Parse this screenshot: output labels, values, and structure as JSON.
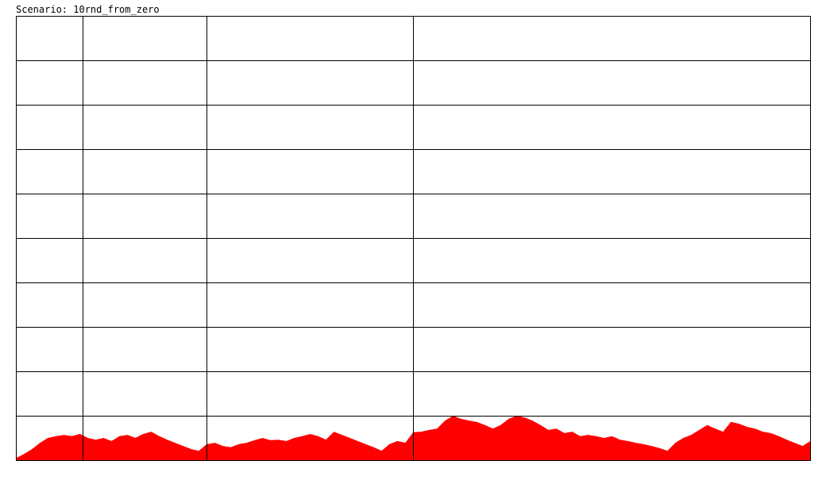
{
  "chart_data": {
    "type": "area",
    "title": "Scenario: 10rnd_from_zero",
    "color": "#ff0000",
    "xlim": [
      0,
      1000
    ],
    "xticks": [
      0,
      84,
      240,
      500,
      1000
    ],
    "ylim": [
      0,
      10
    ],
    "yticks": [
      0,
      1,
      2,
      3,
      4,
      5,
      6,
      7,
      8,
      9,
      10
    ],
    "grid": true,
    "x": [
      0,
      10,
      20,
      30,
      40,
      50,
      60,
      70,
      80,
      90,
      100,
      110,
      120,
      130,
      140,
      150,
      160,
      170,
      180,
      190,
      200,
      210,
      220,
      230,
      240,
      250,
      260,
      270,
      280,
      290,
      300,
      310,
      320,
      330,
      340,
      350,
      360,
      370,
      380,
      390,
      400,
      410,
      420,
      430,
      440,
      450,
      460,
      470,
      480,
      490,
      500,
      510,
      520,
      530,
      540,
      550,
      560,
      570,
      580,
      590,
      600,
      610,
      620,
      630,
      640,
      650,
      660,
      670,
      680,
      690,
      700,
      710,
      720,
      730,
      740,
      750,
      760,
      770,
      780,
      790,
      800,
      810,
      820,
      830,
      840,
      850,
      860,
      870,
      880,
      890,
      900,
      910,
      920,
      930,
      940,
      950,
      960,
      970,
      980,
      990,
      1000
    ],
    "values": [
      0.05,
      0.14,
      0.25,
      0.39,
      0.5,
      0.54,
      0.57,
      0.54,
      0.59,
      0.5,
      0.46,
      0.5,
      0.43,
      0.54,
      0.57,
      0.5,
      0.59,
      0.64,
      0.54,
      0.46,
      0.39,
      0.32,
      0.25,
      0.21,
      0.36,
      0.39,
      0.32,
      0.29,
      0.36,
      0.39,
      0.45,
      0.5,
      0.45,
      0.46,
      0.43,
      0.5,
      0.54,
      0.59,
      0.54,
      0.46,
      0.64,
      0.57,
      0.5,
      0.43,
      0.36,
      0.29,
      0.21,
      0.36,
      0.43,
      0.39,
      0.63,
      0.64,
      0.68,
      0.71,
      0.89,
      1.0,
      0.93,
      0.89,
      0.86,
      0.79,
      0.71,
      0.79,
      0.93,
      1.0,
      0.96,
      0.89,
      0.79,
      0.68,
      0.71,
      0.61,
      0.64,
      0.54,
      0.57,
      0.54,
      0.5,
      0.54,
      0.46,
      0.43,
      0.39,
      0.36,
      0.32,
      0.27,
      0.21,
      0.39,
      0.5,
      0.57,
      0.68,
      0.79,
      0.71,
      0.64,
      0.86,
      0.82,
      0.75,
      0.71,
      0.64,
      0.61,
      0.54,
      0.46,
      0.39,
      0.32,
      0.43
    ]
  }
}
